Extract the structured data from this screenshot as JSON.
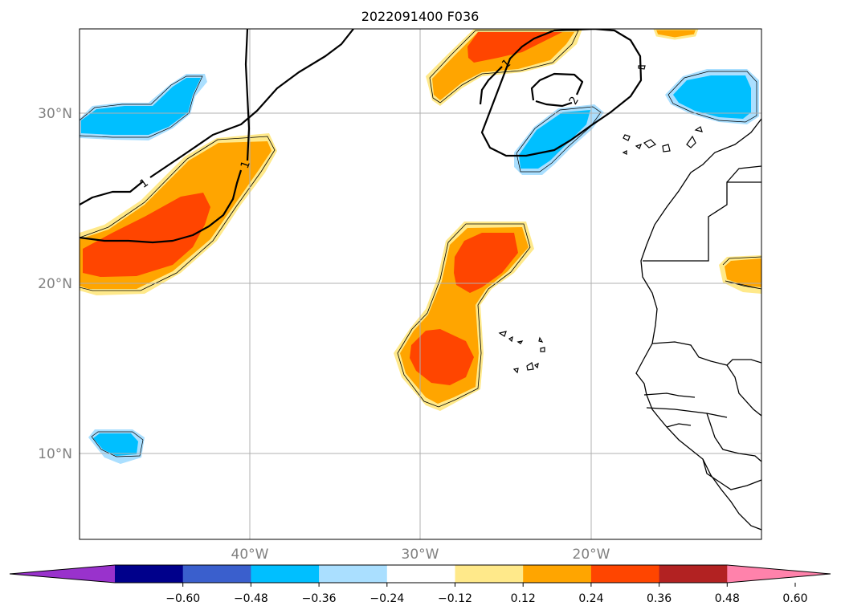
{
  "title": "2022091400 F036",
  "map": {
    "lat_labels": [
      "30°N",
      "20°N",
      "10°N"
    ],
    "lon_labels": [
      "40°W",
      "30°W",
      "20°W"
    ],
    "contour_labels": [
      "1",
      "1",
      "1",
      "2"
    ]
  },
  "colorbar": {
    "ticks": [
      "−0.60",
      "−0.48",
      "−0.36",
      "−0.24",
      "−0.12",
      "0.12",
      "0.24",
      "0.36",
      "0.48",
      "0.60"
    ],
    "colors": [
      "#9932cc",
      "#00008b",
      "#3a5fcd",
      "#00bfff",
      "#aadfff",
      "#ffffff",
      "#ffe98a",
      "#ffa500",
      "#ff4500",
      "#b22222",
      "#ff82ab"
    ],
    "extend": "both"
  }
}
